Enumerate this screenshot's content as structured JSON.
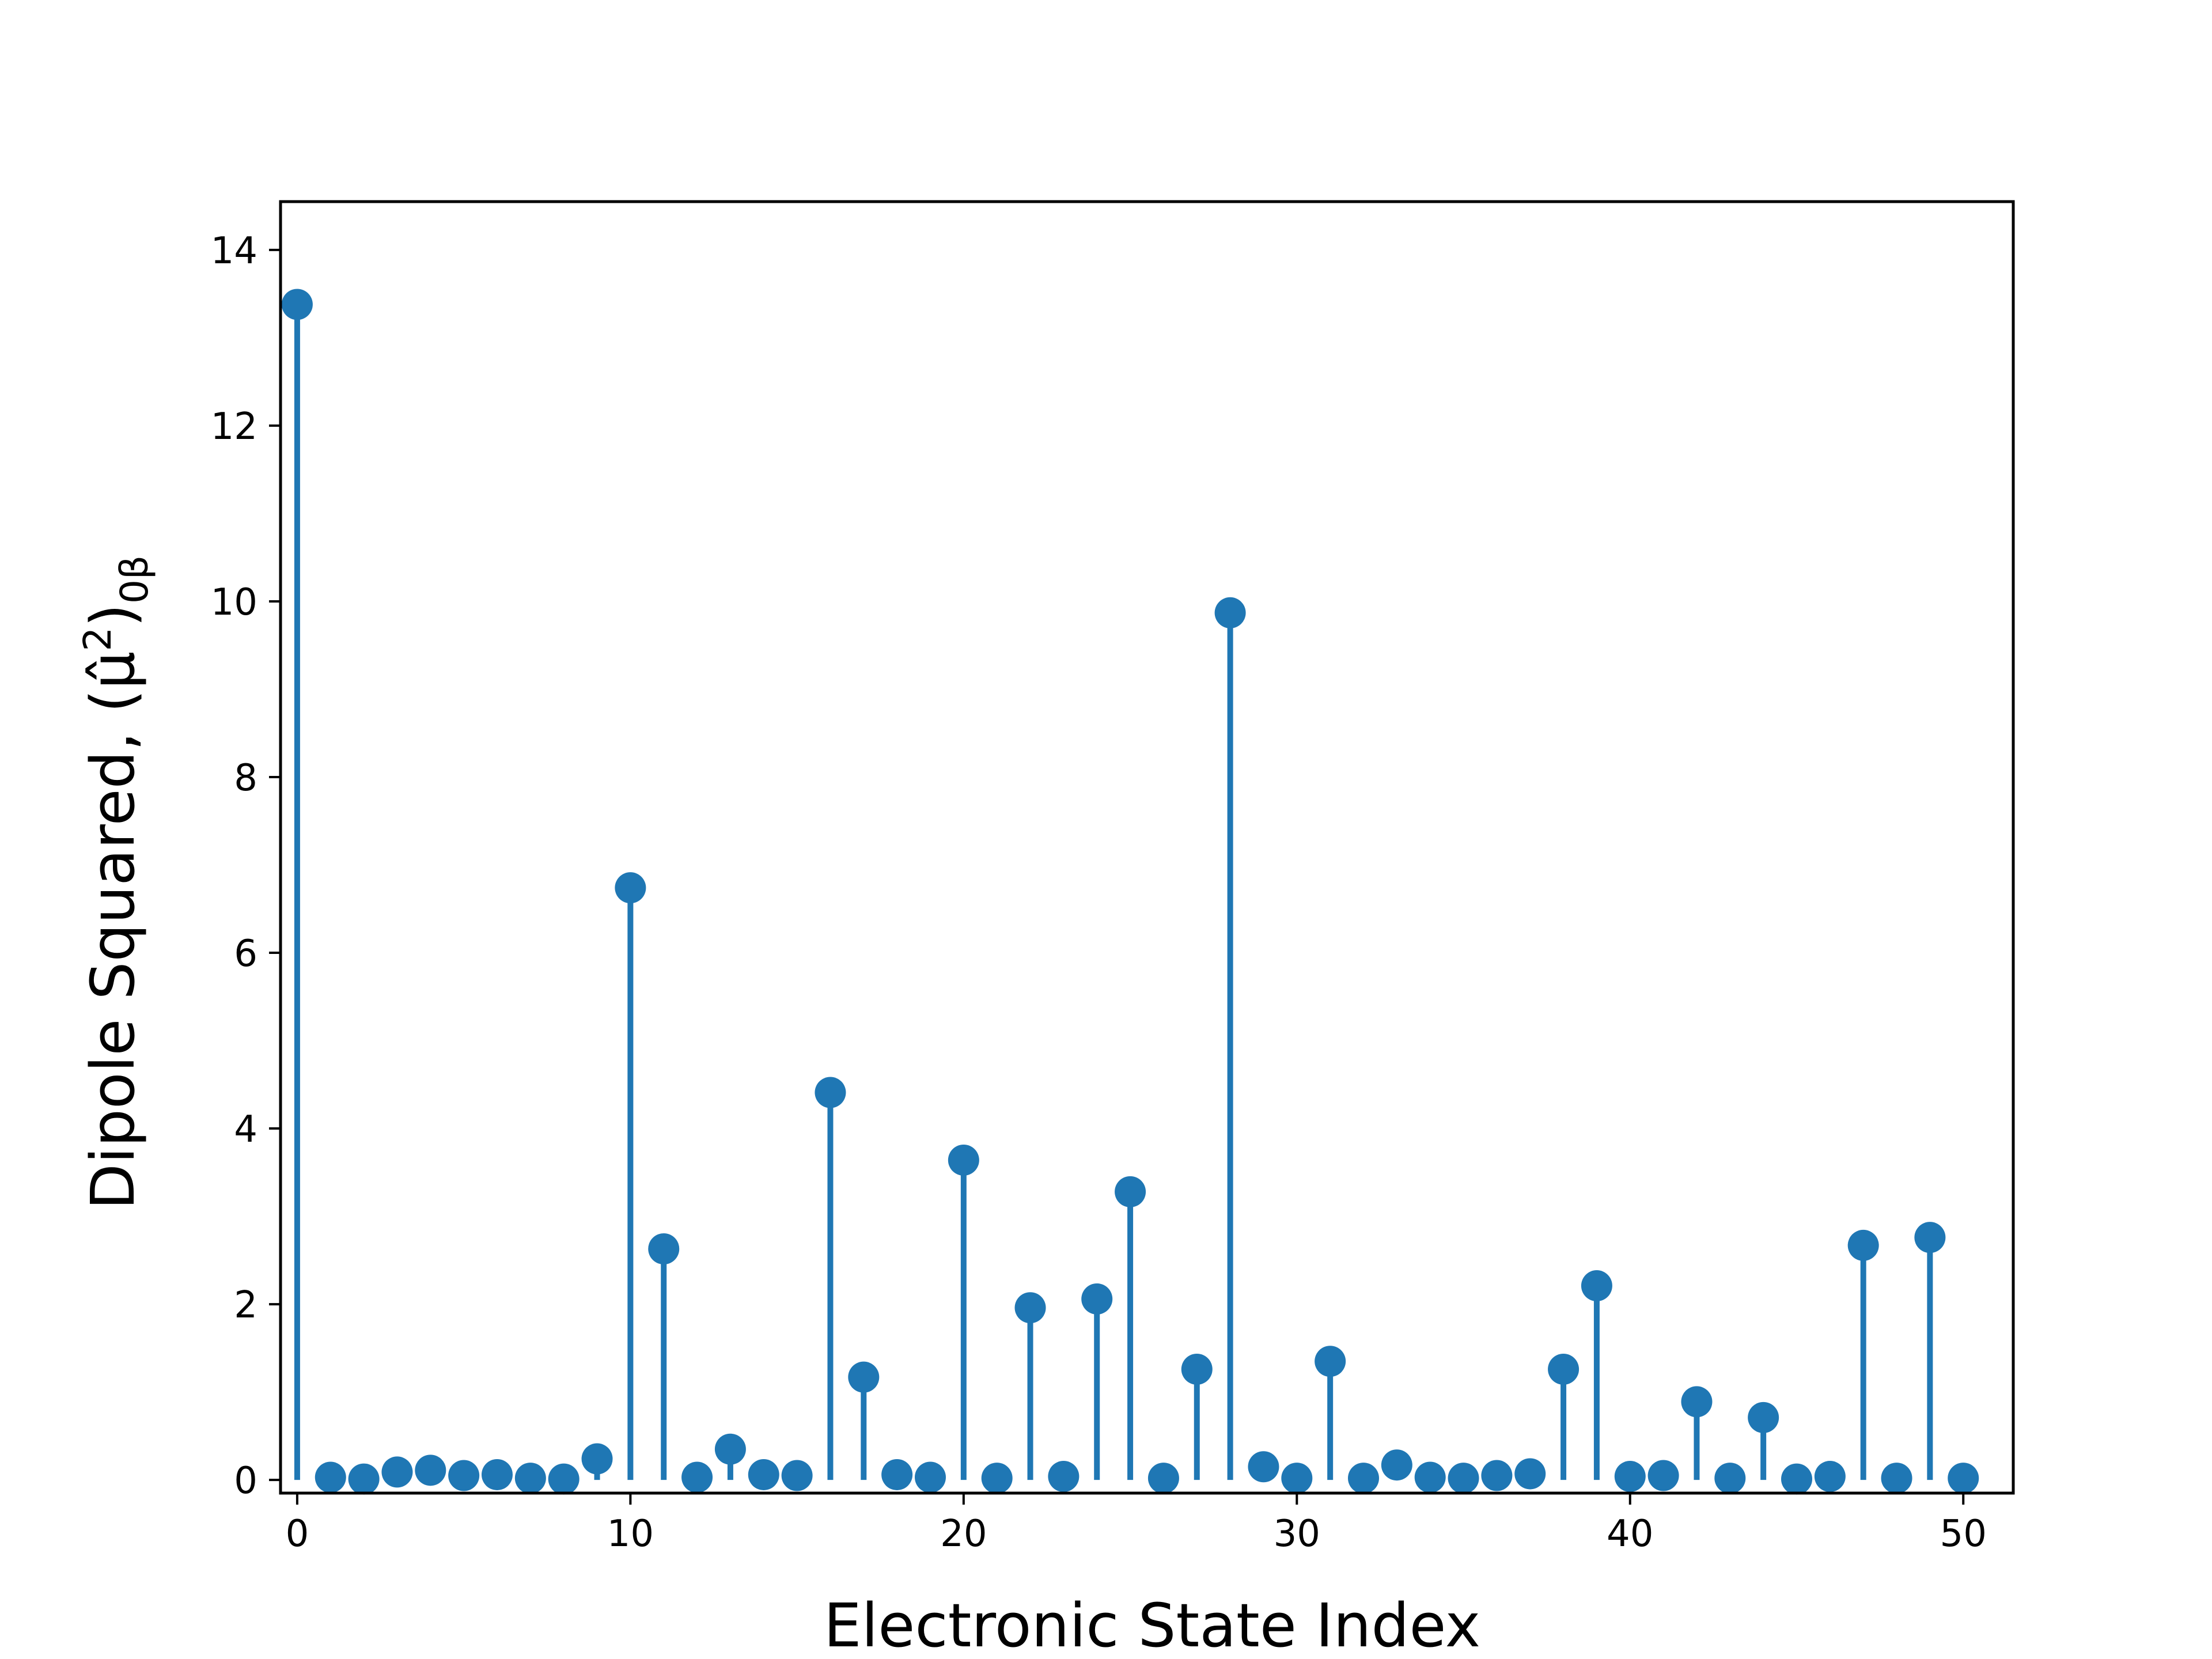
{
  "chart_data": {
    "type": "stem",
    "xlabel": "Electronic State Index",
    "ylabel": {
      "prefix": "Dipole Squared, (",
      "symbol": "μ̂",
      "sup": "2",
      "close": ")",
      "sub": "0β"
    },
    "xlim": [
      -0.5,
      51.5
    ],
    "ylim": [
      -0.15,
      14.55
    ],
    "xticks": [
      0,
      10,
      20,
      30,
      40,
      50
    ],
    "yticks": [
      0,
      2,
      4,
      6,
      8,
      10,
      12,
      14
    ],
    "grid": false,
    "color": "#1f77b4",
    "x": [
      0,
      1,
      2,
      3,
      4,
      5,
      6,
      7,
      8,
      9,
      10,
      11,
      12,
      13,
      14,
      15,
      16,
      17,
      18,
      19,
      20,
      21,
      22,
      23,
      24,
      25,
      26,
      27,
      28,
      29,
      30,
      31,
      32,
      33,
      34,
      35,
      36,
      37,
      38,
      39,
      40,
      41,
      42,
      43,
      44,
      45,
      46,
      47,
      48,
      49,
      50
    ],
    "y": [
      13.38,
      0.03,
      0.01,
      0.09,
      0.11,
      0.05,
      0.06,
      0.02,
      0.01,
      0.24,
      6.74,
      2.63,
      0.03,
      0.35,
      0.06,
      0.05,
      4.41,
      1.17,
      0.06,
      0.03,
      3.64,
      0.02,
      1.96,
      0.04,
      2.06,
      3.28,
      0.02,
      1.26,
      9.87,
      0.15,
      0.02,
      1.35,
      0.02,
      0.17,
      0.03,
      0.02,
      0.05,
      0.07,
      1.26,
      2.21,
      0.04,
      0.05,
      0.89,
      0.02,
      0.71,
      0.01,
      0.04,
      2.67,
      0.02,
      2.76,
      0.02
    ]
  }
}
